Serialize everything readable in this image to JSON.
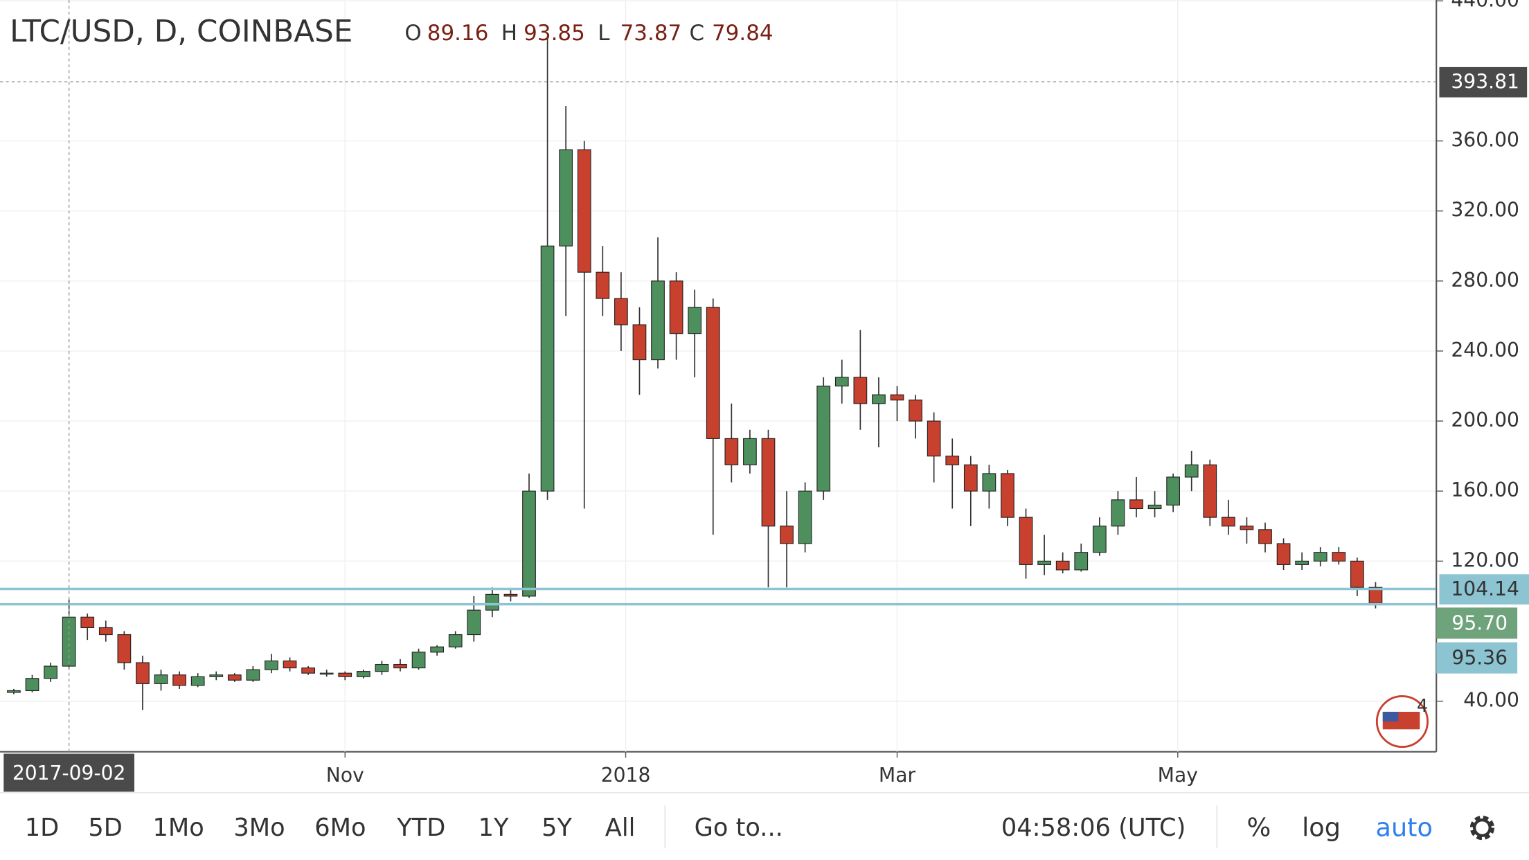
{
  "chart_data": {
    "type": "candlestick",
    "title": "LTC/USD, D, COINBASE",
    "ohlc_legend": {
      "labels": [
        "O",
        "H",
        "L",
        "C"
      ],
      "values": [
        89.16,
        93.85,
        73.87,
        79.84
      ]
    },
    "x": [
      "2017-08-19",
      "2017-08-23",
      "2017-08-27",
      "2017-08-31",
      "2017-09-04",
      "2017-09-08",
      "2017-09-12",
      "2017-09-16",
      "2017-09-20",
      "2017-09-24",
      "2017-09-28",
      "2017-10-02",
      "2017-10-06",
      "2017-10-10",
      "2017-10-14",
      "2017-10-18",
      "2017-10-22",
      "2017-10-26",
      "2017-10-30",
      "2017-11-03",
      "2017-11-07",
      "2017-11-11",
      "2017-11-15",
      "2017-11-19",
      "2017-11-23",
      "2017-11-27",
      "2017-12-01",
      "2017-12-05",
      "2017-12-09",
      "2017-12-13",
      "2017-12-17",
      "2017-12-21",
      "2017-12-25",
      "2017-12-29",
      "2018-01-02",
      "2018-01-06",
      "2018-01-10",
      "2018-01-14",
      "2018-01-18",
      "2018-01-22",
      "2018-01-26",
      "2018-01-30",
      "2018-02-03",
      "2018-02-07",
      "2018-02-11",
      "2018-02-15",
      "2018-02-19",
      "2018-02-23",
      "2018-02-27",
      "2018-03-03",
      "2018-03-07",
      "2018-03-11",
      "2018-03-15",
      "2018-03-19",
      "2018-03-23",
      "2018-03-27",
      "2018-03-31",
      "2018-04-04",
      "2018-04-08",
      "2018-04-12",
      "2018-04-16",
      "2018-04-20",
      "2018-04-24",
      "2018-04-28",
      "2018-05-02",
      "2018-05-06",
      "2018-05-10",
      "2018-05-14",
      "2018-05-18",
      "2018-05-22",
      "2018-05-26",
      "2018-05-30",
      "2018-06-03",
      "2018-06-07",
      "2018-06-11"
    ],
    "open": [
      45,
      46,
      53,
      60,
      88,
      82,
      78,
      62,
      50,
      55,
      49,
      54,
      55,
      52,
      58,
      63,
      59,
      56,
      56,
      54,
      57,
      61,
      59,
      68,
      71,
      78,
      92,
      101,
      100,
      160,
      300,
      355,
      285,
      270,
      255,
      235,
      280,
      250,
      265,
      190,
      175,
      190,
      140,
      130,
      160,
      220,
      225,
      210,
      215,
      212,
      200,
      180,
      175,
      160,
      170,
      145,
      118,
      120,
      115,
      125,
      140,
      155,
      150,
      152,
      168,
      175,
      145,
      140,
      138,
      130,
      118,
      120,
      125,
      120,
      105
    ],
    "high": [
      47,
      55,
      62,
      98,
      90,
      86,
      80,
      66,
      58,
      57,
      56,
      57,
      56,
      60,
      67,
      65,
      60,
      58,
      57,
      58,
      63,
      64,
      70,
      72,
      80,
      100,
      105,
      104,
      170,
      420,
      380,
      360,
      300,
      285,
      265,
      305,
      285,
      275,
      270,
      210,
      195,
      195,
      160,
      165,
      225,
      235,
      252,
      225,
      220,
      215,
      205,
      190,
      180,
      175,
      172,
      150,
      135,
      125,
      130,
      145,
      160,
      168,
      160,
      170,
      183,
      178,
      155,
      145,
      142,
      133,
      125,
      128,
      128,
      122,
      108
    ],
    "low": [
      44,
      45,
      51,
      58,
      75,
      74,
      58,
      35,
      46,
      47,
      48,
      52,
      51,
      51,
      56,
      57,
      55,
      54,
      52,
      53,
      55,
      57,
      58,
      66,
      70,
      74,
      88,
      97,
      99,
      155,
      260,
      150,
      260,
      240,
      215,
      230,
      235,
      225,
      135,
      165,
      170,
      105,
      105,
      125,
      155,
      210,
      195,
      185,
      200,
      190,
      165,
      150,
      140,
      150,
      140,
      110,
      112,
      113,
      114,
      123,
      135,
      145,
      145,
      148,
      160,
      140,
      135,
      130,
      125,
      115,
      115,
      117,
      118,
      100,
      93
    ],
    "close": [
      46,
      53,
      60,
      88,
      82,
      78,
      62,
      50,
      55,
      49,
      54,
      55,
      52,
      58,
      63,
      59,
      56,
      56,
      54,
      57,
      61,
      59,
      68,
      71,
      78,
      92,
      101,
      100,
      160,
      300,
      355,
      285,
      270,
      255,
      235,
      280,
      250,
      265,
      190,
      175,
      190,
      140,
      130,
      160,
      220,
      225,
      210,
      215,
      212,
      200,
      180,
      175,
      160,
      170,
      145,
      118,
      120,
      115,
      125,
      140,
      155,
      150,
      152,
      168,
      175,
      145,
      140,
      138,
      130,
      118,
      120,
      125,
      120,
      105,
      96
    ],
    "up_color": "#4e8f5e",
    "down_color": "#c8402e",
    "xlim": [
      "2017-08-18",
      "2018-06-26"
    ],
    "xticks": [
      {
        "value": "2017-11-01",
        "label": "Nov"
      },
      {
        "value": "2018-01-01",
        "label": "2018"
      },
      {
        "value": "2018-03-01",
        "label": "Mar"
      },
      {
        "value": "2018-05-01",
        "label": "May"
      }
    ],
    "ylim": [
      11.1,
      440.5
    ],
    "yticks": [
      {
        "value": 40,
        "label": "40.00"
      },
      {
        "value": 120,
        "label": "120.00"
      },
      {
        "value": 160,
        "label": "160.00"
      },
      {
        "value": 200,
        "label": "200.00"
      },
      {
        "value": 240,
        "label": "240.00"
      },
      {
        "value": 280,
        "label": "280.00"
      },
      {
        "value": 320,
        "label": "320.00"
      },
      {
        "value": 360,
        "label": "360.00"
      },
      {
        "value": 440,
        "label": "440.00"
      }
    ],
    "grid": true,
    "log_scale": false,
    "crosshair": {
      "x": "2017-09-02",
      "y": 393.81
    },
    "price_lines": [
      {
        "value": 104.14,
        "color": "#8cc4d2"
      },
      {
        "value": 95.36,
        "color": "#8cc4d2"
      }
    ],
    "last_price": {
      "value": 95.7,
      "label": "95.70",
      "color": "#6fa37b"
    },
    "events": {
      "count": 4
    }
  },
  "toolbar": {
    "ranges": [
      "1D",
      "5D",
      "1Mo",
      "3Mo",
      "6Mo",
      "YTD",
      "1Y",
      "5Y",
      "All"
    ],
    "goto": "Go to...",
    "time": "04:58:06 (UTC)",
    "options": [
      "%",
      "log",
      "auto"
    ]
  }
}
